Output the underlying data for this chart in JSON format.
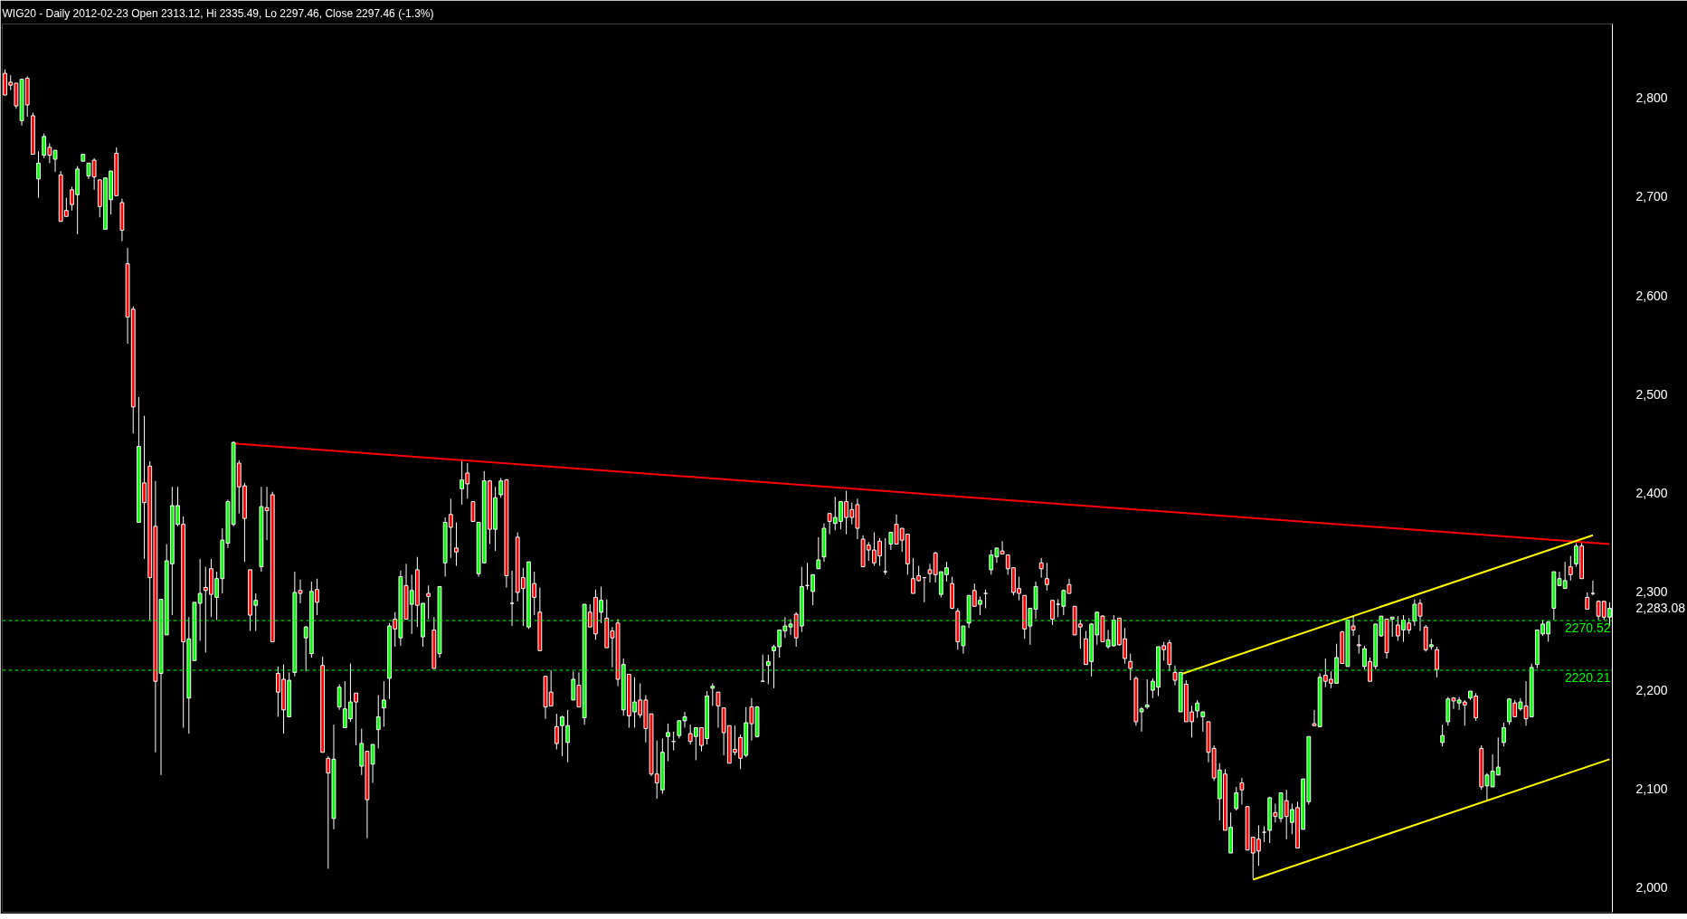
{
  "chart_data": {
    "type": "candlestick",
    "title": "WIG20 - Daily 2012-02-23 Open 2313.12, Hi 2335.49, Lo 2297.46, Close 2297.46 (-1.3%)",
    "categories": [
      null,
      null,
      null,
      null,
      null,
      null,
      null,
      null,
      null,
      null,
      null,
      null,
      null,
      null,
      null,
      null,
      null,
      null,
      null,
      null,
      null,
      null,
      null,
      null,
      null,
      null,
      null,
      null,
      null,
      null,
      null,
      null,
      null,
      null,
      null,
      null,
      null,
      null,
      null,
      null,
      null,
      null,
      null,
      null,
      null,
      null,
      null,
      null,
      null,
      null,
      null,
      null,
      null,
      null,
      null,
      null,
      null,
      null,
      null,
      null,
      null,
      null,
      null,
      null,
      null,
      null,
      null,
      null,
      null,
      null,
      null,
      null,
      null,
      null,
      null,
      null,
      null,
      null,
      null,
      null,
      null,
      null,
      null,
      null,
      null,
      null,
      null,
      null,
      null,
      null,
      null,
      null,
      null,
      null,
      null,
      null,
      null,
      null,
      null,
      null,
      null,
      null,
      null,
      null,
      null,
      null,
      null,
      null,
      null,
      null,
      null,
      null,
      null,
      null,
      null,
      null,
      null,
      null,
      null,
      null,
      null,
      null,
      null,
      null,
      null,
      null,
      null,
      null,
      null,
      null,
      null,
      null,
      null,
      null,
      null,
      null,
      null,
      null,
      null,
      null,
      null,
      null,
      null,
      null,
      null,
      null,
      null,
      null,
      null,
      null,
      null,
      null,
      null,
      null,
      null,
      null,
      null,
      null,
      null,
      null,
      null,
      null,
      null,
      null,
      null,
      null,
      null,
      null,
      null,
      null,
      null,
      null,
      null,
      null,
      null,
      null,
      null,
      null,
      null,
      null,
      null,
      null,
      null,
      null,
      null,
      null,
      null,
      null,
      null,
      null,
      null,
      null,
      null,
      null,
      null,
      null,
      null,
      null,
      null,
      null,
      null,
      null,
      null,
      null,
      null,
      null,
      null,
      null,
      null,
      null,
      null,
      null,
      null,
      null,
      null,
      null,
      null,
      null,
      null,
      null,
      null,
      null,
      null,
      null,
      null,
      null,
      null,
      null,
      null,
      null,
      null,
      null,
      null,
      null,
      null,
      null,
      null,
      null,
      null,
      null,
      null,
      null,
      null,
      null,
      null,
      null,
      null,
      null,
      null,
      null,
      null,
      null,
      null,
      null,
      null,
      null,
      null,
      null,
      null,
      null,
      null,
      null,
      null,
      null,
      null,
      null,
      null,
      null,
      null,
      null,
      null,
      null,
      null,
      null,
      null,
      null,
      null,
      null,
      null,
      null,
      null,
      null,
      null,
      null,
      null,
      null,
      null,
      null,
      null
    ],
    "ohlc": [
      [
        2825,
        2829,
        2803,
        2803
      ],
      [
        2816,
        2823,
        2808,
        2813
      ],
      [
        2815,
        2815,
        2789,
        2792
      ],
      [
        2777,
        2819,
        2772,
        2819
      ],
      [
        2820,
        2822,
        2781,
        2793
      ],
      [
        2782,
        2785,
        2743,
        2743
      ],
      [
        2718,
        2746,
        2699,
        2734
      ],
      [
        2742,
        2764,
        2739,
        2761
      ],
      [
        2750,
        2754,
        2734,
        2742
      ],
      [
        2738,
        2747,
        2725,
        2747
      ],
      [
        2722,
        2726,
        2675,
        2675
      ],
      [
        2686,
        2699,
        2680,
        2680
      ],
      [
        2707,
        2710,
        2686,
        2692
      ],
      [
        2702,
        2731,
        2662,
        2728
      ],
      [
        2736,
        2743,
        2736,
        2743
      ],
      [
        2721,
        2734,
        2718,
        2734
      ],
      [
        2737,
        2739,
        2707,
        2720
      ],
      [
        2717,
        2717,
        2679,
        2690
      ],
      [
        2667,
        2719,
        2667,
        2719
      ],
      [
        2697,
        2726,
        2682,
        2726
      ],
      [
        2744,
        2750,
        2701,
        2701
      ],
      [
        2694,
        2698,
        2655,
        2666
      ],
      [
        2632,
        2648,
        2551,
        2578
      ],
      [
        2586,
        2589,
        2460,
        2487
      ],
      [
        2370,
        2497,
        2370,
        2447
      ],
      [
        2410,
        2478,
        2333,
        2390
      ],
      [
        2427,
        2432,
        2271,
        2314
      ],
      [
        2366,
        2412,
        2137,
        2209
      ],
      [
        2217,
        2292,
        2114,
        2292
      ],
      [
        2256,
        2348,
        2256,
        2331
      ],
      [
        2328,
        2406,
        2276,
        2387
      ],
      [
        2368,
        2406,
        2366,
        2387
      ],
      [
        2368,
        2376,
        2162,
        2249
      ],
      [
        2192,
        2274,
        2156,
        2252
      ],
      [
        2230,
        2289,
        2230,
        2289
      ],
      [
        2288,
        2333,
        2250,
        2298
      ],
      [
        2304,
        2325,
        2238,
        2301
      ],
      [
        2323,
        2333,
        2274,
        2297
      ],
      [
        2294,
        2320,
        2271,
        2313
      ],
      [
        2313,
        2364,
        2298,
        2352
      ],
      [
        2349,
        2393,
        2344,
        2391
      ],
      [
        2368,
        2452,
        2366,
        2451
      ],
      [
        2430,
        2433,
        2379,
        2406
      ],
      [
        2407,
        2410,
        2330,
        2374
      ],
      [
        2322,
        2322,
        2260,
        2276
      ],
      [
        2286,
        2298,
        2260,
        2291
      ],
      [
        2325,
        2406,
        2320,
        2386
      ],
      [
        2385,
        2406,
        2352,
        2382
      ],
      [
        2398,
        2401,
        2249,
        2249
      ],
      [
        2217,
        2224,
        2173,
        2198
      ],
      [
        2211,
        2226,
        2156,
        2180
      ],
      [
        2173,
        2218,
        2173,
        2210
      ],
      [
        2218,
        2320,
        2214,
        2299
      ],
      [
        2301,
        2312,
        2288,
        2298
      ],
      [
        2253,
        2265,
        2219,
        2264
      ],
      [
        2237,
        2310,
        2233,
        2300
      ],
      [
        2302,
        2313,
        2276,
        2289
      ],
      [
        2225,
        2234,
        2137,
        2137
      ],
      [
        2131,
        2133,
        2019,
        2116
      ],
      [
        2070,
        2165,
        2059,
        2130
      ],
      [
        2183,
        2206,
        2180,
        2203
      ],
      [
        2162,
        2209,
        2162,
        2181
      ],
      [
        2171,
        2227,
        2168,
        2188
      ],
      [
        2197,
        2197,
        2144,
        2188
      ],
      [
        2123,
        2161,
        2114,
        2146
      ],
      [
        2138,
        2138,
        2050,
        2089
      ],
      [
        2125,
        2145,
        2106,
        2145
      ],
      [
        2160,
        2195,
        2141,
        2173
      ],
      [
        2182,
        2209,
        2163,
        2190
      ],
      [
        2212,
        2268,
        2191,
        2265
      ],
      [
        2272,
        2279,
        2244,
        2262
      ],
      [
        2253,
        2321,
        2245,
        2315
      ],
      [
        2306,
        2328,
        2272,
        2272
      ],
      [
        2287,
        2317,
        2257,
        2301
      ],
      [
        2322,
        2335,
        2264,
        2286
      ],
      [
        2254,
        2288,
        2244,
        2288
      ],
      [
        2298,
        2306,
        2272,
        2295
      ],
      [
        2261,
        2274,
        2222,
        2222
      ],
      [
        2237,
        2305,
        2233,
        2305
      ],
      [
        2329,
        2375,
        2315,
        2370
      ],
      [
        2378,
        2394,
        2334,
        2365
      ],
      [
        2344,
        2370,
        2326,
        2340
      ],
      [
        2404,
        2432,
        2388,
        2413
      ],
      [
        2420,
        2430,
        2394,
        2409
      ],
      [
        2391,
        2391,
        2371,
        2371
      ],
      [
        2318,
        2370,
        2315,
        2370
      ],
      [
        2329,
        2422,
        2329,
        2412
      ],
      [
        2412,
        2413,
        2348,
        2363
      ],
      [
        2363,
        2406,
        2341,
        2395
      ],
      [
        2398,
        2415,
        2395,
        2412
      ],
      [
        2413,
        2414,
        2304,
        2316
      ],
      [
        2288,
        2321,
        2265,
        2288
      ],
      [
        2355,
        2360,
        2290,
        2299
      ],
      [
        2314,
        2324,
        2265,
        2303
      ],
      [
        2264,
        2330,
        2262,
        2330
      ],
      [
        2308,
        2320,
        2276,
        2294
      ],
      [
        2279,
        2304,
        2240,
        2240
      ],
      [
        2214,
        2214,
        2171,
        2183
      ],
      [
        2198,
        2220,
        2184,
        2184
      ],
      [
        2163,
        2176,
        2140,
        2146
      ],
      [
        2164,
        2174,
        2133,
        2173
      ],
      [
        2147,
        2180,
        2127,
        2164
      ],
      [
        2190,
        2219,
        2190,
        2211
      ],
      [
        2205,
        2218,
        2183,
        2183
      ],
      [
        2172,
        2287,
        2165,
        2287
      ],
      [
        2279,
        2287,
        2264,
        2264
      ],
      [
        2294,
        2302,
        2251,
        2257
      ],
      [
        2279,
        2305,
        2268,
        2291
      ],
      [
        2273,
        2292,
        2243,
        2243
      ],
      [
        2260,
        2264,
        2223,
        2253
      ],
      [
        2268,
        2272,
        2204,
        2211
      ],
      [
        2180,
        2232,
        2174,
        2226
      ],
      [
        2216,
        2216,
        2162,
        2174
      ],
      [
        2178,
        2213,
        2162,
        2188
      ],
      [
        2190,
        2207,
        2172,
        2175
      ],
      [
        2190,
        2195,
        2147,
        2161
      ],
      [
        2176,
        2176,
        2113,
        2115
      ],
      [
        2115,
        2149,
        2090,
        2106
      ],
      [
        2099,
        2151,
        2095,
        2137
      ],
      [
        2153,
        2166,
        2128,
        2157
      ],
      [
        2148,
        2158,
        2139,
        2148
      ],
      [
        2154,
        2169,
        2151,
        2169
      ],
      [
        2169,
        2178,
        2162,
        2173
      ],
      [
        2156,
        2165,
        2145,
        2148
      ],
      [
        2153,
        2162,
        2129,
        2162
      ],
      [
        2162,
        2162,
        2138,
        2144
      ],
      [
        2151,
        2199,
        2145,
        2194
      ],
      [
        2202,
        2207,
        2184,
        2204
      ],
      [
        2198,
        2198,
        2162,
        2184
      ],
      [
        2182,
        2182,
        2134,
        2157
      ],
      [
        2164,
        2164,
        2126,
        2126
      ],
      [
        2140,
        2164,
        2134,
        2137
      ],
      [
        2152,
        2155,
        2120,
        2131
      ],
      [
        2134,
        2183,
        2132,
        2167
      ],
      [
        2183,
        2192,
        2149,
        2166
      ],
      [
        2153,
        2184,
        2152,
        2183
      ],
      [
        2209,
        2236,
        2209,
        2209
      ],
      [
        2225,
        2236,
        2206,
        2229
      ],
      [
        2240,
        2246,
        2202,
        2244
      ],
      [
        2244,
        2261,
        2233,
        2261
      ],
      [
        2260,
        2274,
        2253,
        2265
      ],
      [
        2264,
        2272,
        2256,
        2267
      ],
      [
        2277,
        2279,
        2244,
        2253
      ],
      [
        2265,
        2325,
        2259,
        2305
      ],
      [
        2306,
        2329,
        2302,
        2306
      ],
      [
        2300,
        2317,
        2286,
        2317
      ],
      [
        2323,
        2355,
        2323,
        2332
      ],
      [
        2335,
        2369,
        2330,
        2364
      ],
      [
        2379,
        2379,
        2358,
        2371
      ],
      [
        2369,
        2396,
        2362,
        2375
      ],
      [
        2371,
        2391,
        2363,
        2391
      ],
      [
        2391,
        2402,
        2358,
        2375
      ],
      [
        2383,
        2390,
        2368,
        2375
      ],
      [
        2388,
        2394,
        2353,
        2364
      ],
      [
        2353,
        2357,
        2325,
        2325
      ],
      [
        2347,
        2350,
        2331,
        2342
      ],
      [
        2342,
        2360,
        2326,
        2329
      ],
      [
        2351,
        2354,
        2326,
        2336
      ],
      [
        2320,
        2354,
        2317,
        2320
      ],
      [
        2348,
        2360,
        2342,
        2360
      ],
      [
        2368,
        2378,
        2348,
        2348
      ],
      [
        2364,
        2364,
        2340,
        2352
      ],
      [
        2358,
        2358,
        2317,
        2328
      ],
      [
        2313,
        2334,
        2298,
        2298
      ],
      [
        2316,
        2326,
        2310,
        2311
      ],
      [
        2314,
        2314,
        2289,
        2314
      ],
      [
        2322,
        2328,
        2309,
        2318
      ],
      [
        2339,
        2340,
        2309,
        2317
      ],
      [
        2297,
        2320,
        2294,
        2320
      ],
      [
        2317,
        2330,
        2310,
        2324
      ],
      [
        2308,
        2315,
        2282,
        2283
      ],
      [
        2280,
        2283,
        2241,
        2249
      ],
      [
        2245,
        2265,
        2237,
        2265
      ],
      [
        2268,
        2296,
        2263,
        2296
      ],
      [
        2301,
        2308,
        2285,
        2285
      ],
      [
        2287,
        2295,
        2276,
        2291
      ],
      [
        2298,
        2302,
        2283,
        2298
      ],
      [
        2322,
        2342,
        2317,
        2337
      ],
      [
        2335,
        2344,
        2329,
        2344
      ],
      [
        2341,
        2351,
        2338,
        2338
      ],
      [
        2337,
        2337,
        2317,
        2323
      ],
      [
        2324,
        2324,
        2296,
        2299
      ],
      [
        2303,
        2315,
        2291,
        2298
      ],
      [
        2296,
        2296,
        2252,
        2262
      ],
      [
        2265,
        2283,
        2246,
        2283
      ],
      [
        2282,
        2310,
        2272,
        2305
      ],
      [
        2329,
        2334,
        2314,
        2323
      ],
      [
        2313,
        2329,
        2301,
        2307
      ],
      [
        2291,
        2291,
        2266,
        2272
      ],
      [
        2287,
        2292,
        2274,
        2287
      ],
      [
        2285,
        2302,
        2276,
        2301
      ],
      [
        2307,
        2313,
        2298,
        2298
      ],
      [
        2285,
        2285,
        2256,
        2256
      ],
      [
        2267,
        2271,
        2242,
        2264
      ],
      [
        2252,
        2260,
        2226,
        2226
      ],
      [
        2229,
        2268,
        2214,
        2267
      ],
      [
        2256,
        2279,
        2246,
        2279
      ],
      [
        2275,
        2276,
        2249,
        2249
      ],
      [
        2244,
        2261,
        2242,
        2251
      ],
      [
        2245,
        2276,
        2244,
        2271
      ],
      [
        2273,
        2273,
        2245,
        2246
      ],
      [
        2252,
        2263,
        2227,
        2232
      ],
      [
        2229,
        2237,
        2210,
        2222
      ],
      [
        2212,
        2214,
        2164,
        2168
      ],
      [
        2178,
        2183,
        2158,
        2181
      ],
      [
        2183,
        2211,
        2181,
        2185
      ],
      [
        2200,
        2212,
        2192,
        2209
      ],
      [
        2203,
        2244,
        2194,
        2244
      ],
      [
        2245,
        2249,
        2230,
        2241
      ],
      [
        2248,
        2251,
        2219,
        2226
      ],
      [
        2218,
        2225,
        2205,
        2210
      ],
      [
        2178,
        2218,
        2178,
        2218
      ],
      [
        2206,
        2210,
        2168,
        2168
      ],
      [
        2178,
        2184,
        2152,
        2168
      ],
      [
        2179,
        2190,
        2172,
        2187
      ],
      [
        2173,
        2178,
        2158,
        2178
      ],
      [
        2168,
        2168,
        2127,
        2137
      ],
      [
        2141,
        2144,
        2108,
        2111
      ],
      [
        2090,
        2126,
        2068,
        2119
      ],
      [
        2115,
        2120,
        2058,
        2058
      ],
      [
        2035,
        2076,
        2035,
        2061
      ],
      [
        2080,
        2102,
        2078,
        2096
      ],
      [
        2106,
        2111,
        2084,
        2099
      ],
      [
        2082,
        2082,
        2038,
        2038
      ],
      [
        2051,
        2051,
        2009,
        2035
      ],
      [
        2049,
        2063,
        2022,
        2037
      ],
      [
        2056,
        2062,
        2046,
        2056
      ],
      [
        2058,
        2092,
        2045,
        2091
      ],
      [
        2076,
        2085,
        2066,
        2072
      ],
      [
        2070,
        2096,
        2066,
        2096
      ],
      [
        2088,
        2099,
        2049,
        2072
      ],
      [
        2066,
        2085,
        2054,
        2079
      ],
      [
        2081,
        2087,
        2040,
        2040
      ],
      [
        2059,
        2110,
        2059,
        2110
      ],
      [
        2087,
        2153,
        2084,
        2153
      ],
      [
        2166,
        2180,
        2164,
        2164
      ],
      [
        2163,
        2217,
        2163,
        2213
      ],
      [
        2215,
        2232,
        2203,
        2209
      ],
      [
        2211,
        2219,
        2202,
        2207
      ],
      [
        2207,
        2247,
        2207,
        2233
      ],
      [
        2259,
        2260,
        2227,
        2227
      ],
      [
        2224,
        2271,
        2224,
        2271
      ],
      [
        2265,
        2275,
        2255,
        2261
      ],
      [
        2246,
        2256,
        2237,
        2245
      ],
      [
        2224,
        2245,
        2221,
        2242
      ],
      [
        2229,
        2233,
        2209,
        2209
      ],
      [
        2224,
        2267,
        2221,
        2267
      ],
      [
        2255,
        2275,
        2254,
        2275
      ],
      [
        2272,
        2272,
        2232,
        2238
      ],
      [
        2272,
        2274,
        2254,
        2274
      ],
      [
        2266,
        2275,
        2250,
        2255
      ],
      [
        2261,
        2276,
        2249,
        2271
      ],
      [
        2268,
        2273,
        2257,
        2261
      ],
      [
        2270,
        2292,
        2265,
        2287
      ],
      [
        2288,
        2292,
        2260,
        2275
      ],
      [
        2264,
        2266,
        2239,
        2241
      ],
      [
        2244,
        2252,
        2241,
        2246
      ],
      [
        2241,
        2244,
        2213,
        2221
      ],
      [
        2147,
        2165,
        2143,
        2154
      ],
      [
        2168,
        2193,
        2164,
        2191
      ],
      [
        2192,
        2193,
        2181,
        2189
      ],
      [
        2187,
        2193,
        2180,
        2190
      ],
      [
        2188,
        2190,
        2164,
        2185
      ],
      [
        2192,
        2199,
        2190,
        2199
      ],
      [
        2194,
        2197,
        2169,
        2172
      ],
      [
        2141,
        2144,
        2099,
        2102
      ],
      [
        2103,
        2116,
        2089,
        2114
      ],
      [
        2102,
        2135,
        2102,
        2118
      ],
      [
        2114,
        2152,
        2114,
        2122
      ],
      [
        2147,
        2167,
        2143,
        2162
      ],
      [
        2168,
        2192,
        2165,
        2191
      ],
      [
        2187,
        2190,
        2173,
        2173
      ],
      [
        2181,
        2192,
        2179,
        2188
      ],
      [
        2184,
        2209,
        2164,
        2171
      ],
      [
        2173,
        2227,
        2173,
        2223
      ],
      [
        2226,
        2261,
        2222,
        2261
      ],
      [
        2257,
        2271,
        2255,
        2267
      ],
      [
        2257,
        2269,
        2249,
        2269
      ],
      [
        2283,
        2320,
        2271,
        2320
      ],
      [
        2306,
        2320,
        2306,
        2313
      ],
      [
        2303,
        2330,
        2303,
        2311
      ],
      [
        2325,
        2336,
        2311,
        2317
      ],
      [
        2328,
        2349,
        2325,
        2346
      ],
      [
        2346,
        2349,
        2313,
        2313
      ],
      [
        2294,
        2299,
        2282,
        2282
      ],
      [
        2298,
        2311,
        2296,
        2298
      ],
      [
        2290,
        2291,
        2271,
        2275
      ],
      [
        2290,
        2290,
        2271,
        2274
      ],
      [
        2274,
        2289,
        2265,
        2283
      ]
    ],
    "series": [
      {
        "type": "line",
        "color": "#ff0000",
        "values": [
          null,
          null,
          null,
          null,
          null,
          null,
          null,
          null,
          null,
          null,
          null,
          null,
          null,
          null,
          null,
          null,
          null,
          null,
          null,
          null,
          null,
          null,
          null,
          null,
          null,
          null,
          null,
          null,
          null,
          null,
          null,
          null,
          null,
          null,
          null,
          null,
          null,
          null,
          null,
          null,
          null,
          2450,
          null,
          null,
          null,
          null,
          null,
          null,
          null,
          null,
          null,
          null,
          null,
          null,
          null,
          null,
          null,
          null,
          null,
          null,
          null,
          null,
          null,
          null,
          null,
          null,
          null,
          null,
          null,
          null,
          null,
          null,
          null,
          null,
          null,
          null,
          null,
          null,
          null,
          null,
          null,
          null,
          null,
          null,
          null,
          null,
          null,
          null,
          null,
          null,
          null,
          null,
          null,
          null,
          null,
          null,
          null,
          null,
          null,
          null,
          null,
          null,
          null,
          null,
          null,
          null,
          null,
          null,
          null,
          null,
          null,
          null,
          null,
          null,
          null,
          null,
          null,
          null,
          null,
          null,
          null,
          null,
          null,
          null,
          null,
          null,
          null,
          null,
          null,
          null,
          null,
          null,
          null,
          null,
          null,
          null,
          null,
          null,
          null,
          null,
          null,
          null,
          null,
          null,
          null,
          null,
          null,
          null,
          null,
          null,
          null,
          null,
          null,
          null,
          null,
          null,
          null,
          null,
          null,
          null,
          null,
          null,
          null,
          null,
          null,
          null,
          null,
          null,
          null,
          null,
          null,
          null,
          null,
          null,
          null,
          null,
          null,
          null,
          null,
          null,
          null,
          null,
          null,
          null,
          null,
          null,
          null,
          null,
          null,
          null,
          null,
          null,
          null,
          null,
          null,
          null,
          null,
          null,
          null,
          null,
          null,
          null,
          null,
          null,
          null,
          null,
          null,
          null,
          null,
          null,
          null,
          null,
          null,
          null,
          null,
          null,
          null,
          null,
          null,
          null,
          null,
          null,
          null,
          null,
          null,
          null,
          null,
          null,
          null,
          null,
          null,
          null,
          null,
          null,
          null,
          null,
          null,
          null,
          null,
          null,
          null,
          null,
          null,
          null,
          null,
          null,
          null,
          null,
          null,
          null,
          null,
          null,
          null,
          null,
          null,
          null,
          null,
          null,
          null,
          null,
          null,
          null,
          null,
          null,
          null,
          null,
          null,
          null,
          null,
          null,
          null,
          null,
          null,
          null,
          null,
          null,
          null,
          null,
          null,
          null,
          null,
          null,
          null,
          null,
          null,
          null,
          null,
          null,
          2348
        ]
      },
      {
        "type": "line",
        "color": "#ffff00",
        "values": [
          null,
          null,
          null,
          null,
          null,
          null,
          null,
          null,
          null,
          null,
          null,
          null,
          null,
          null,
          null,
          null,
          null,
          null,
          null,
          null,
          null,
          null,
          null,
          null,
          null,
          null,
          null,
          null,
          null,
          null,
          null,
          null,
          null,
          null,
          null,
          null,
          null,
          null,
          null,
          null,
          null,
          null,
          null,
          null,
          null,
          null,
          null,
          null,
          null,
          null,
          null,
          null,
          null,
          null,
          null,
          null,
          null,
          null,
          null,
          null,
          null,
          null,
          null,
          null,
          null,
          null,
          null,
          null,
          null,
          null,
          null,
          null,
          null,
          null,
          null,
          null,
          null,
          null,
          null,
          null,
          null,
          null,
          null,
          null,
          null,
          null,
          null,
          null,
          null,
          null,
          null,
          null,
          null,
          null,
          null,
          null,
          null,
          null,
          null,
          null,
          null,
          null,
          null,
          null,
          null,
          null,
          null,
          null,
          null,
          null,
          null,
          null,
          null,
          null,
          null,
          null,
          null,
          null,
          null,
          null,
          null,
          null,
          null,
          null,
          null,
          null,
          null,
          null,
          null,
          null,
          null,
          null,
          null,
          null,
          null,
          null,
          null,
          null,
          null,
          null,
          null,
          null,
          null,
          null,
          null,
          null,
          null,
          null,
          null,
          null,
          null,
          null,
          null,
          null,
          null,
          null,
          null,
          null,
          null,
          null,
          null,
          null,
          null,
          null,
          null,
          null,
          null,
          null,
          null,
          null,
          null,
          null,
          null,
          null,
          null,
          null,
          null,
          null,
          null,
          null,
          null,
          null,
          null,
          null,
          null,
          null,
          null,
          null,
          null,
          null,
          null,
          null,
          null,
          null,
          null,
          null,
          null,
          null,
          null,
          null,
          null,
          null,
          null,
          null,
          null,
          null,
          null,
          null,
          null,
          null,
          null,
          2216,
          null,
          null,
          null,
          null,
          null,
          null,
          null,
          null,
          null,
          null,
          null,
          null,
          null,
          null,
          null,
          null,
          null,
          null,
          null,
          null,
          null,
          null,
          null,
          null,
          null,
          null,
          null,
          null,
          null,
          null,
          null,
          null,
          null,
          null,
          null,
          null,
          null,
          null,
          null,
          null,
          null,
          null,
          null,
          null,
          null,
          null,
          null,
          null,
          null,
          null,
          null,
          null,
          null,
          null,
          null,
          null,
          null,
          null,
          null,
          null,
          null,
          null,
          null,
          null,
          null,
          null,
          null,
          null,
          null,
          null,
          null,
          null,
          null,
          2357,
          null,
          null,
          null
        ]
      },
      {
        "type": "line",
        "color": "#ffff00",
        "values": [
          null,
          null,
          null,
          null,
          null,
          null,
          null,
          null,
          null,
          null,
          null,
          null,
          null,
          null,
          null,
          null,
          null,
          null,
          null,
          null,
          null,
          null,
          null,
          null,
          null,
          null,
          null,
          null,
          null,
          null,
          null,
          null,
          null,
          null,
          null,
          null,
          null,
          null,
          null,
          null,
          null,
          null,
          null,
          null,
          null,
          null,
          null,
          null,
          null,
          null,
          null,
          null,
          null,
          null,
          null,
          null,
          null,
          null,
          null,
          null,
          null,
          null,
          null,
          null,
          null,
          null,
          null,
          null,
          null,
          null,
          null,
          null,
          null,
          null,
          null,
          null,
          null,
          null,
          null,
          null,
          null,
          null,
          null,
          null,
          null,
          null,
          null,
          null,
          null,
          null,
          null,
          null,
          null,
          null,
          null,
          null,
          null,
          null,
          null,
          null,
          null,
          null,
          null,
          null,
          null,
          null,
          null,
          null,
          null,
          null,
          null,
          null,
          null,
          null,
          null,
          null,
          null,
          null,
          null,
          null,
          null,
          null,
          null,
          null,
          null,
          null,
          null,
          null,
          null,
          null,
          null,
          null,
          null,
          null,
          null,
          null,
          null,
          null,
          null,
          null,
          null,
          null,
          null,
          null,
          null,
          null,
          null,
          null,
          null,
          null,
          null,
          null,
          null,
          null,
          null,
          null,
          null,
          null,
          null,
          null,
          null,
          null,
          null,
          null,
          null,
          null,
          null,
          null,
          null,
          null,
          null,
          null,
          null,
          null,
          null,
          null,
          null,
          null,
          null,
          null,
          null,
          null,
          null,
          null,
          null,
          null,
          null,
          null,
          null,
          null,
          null,
          null,
          null,
          null,
          null,
          null,
          null,
          null,
          null,
          null,
          null,
          null,
          null,
          null,
          null,
          null,
          null,
          null,
          null,
          null,
          null,
          null,
          null,
          null,
          null,
          null,
          null,
          null,
          null,
          null,
          null,
          null,
          null,
          null,
          2008,
          null,
          null,
          null,
          null,
          null,
          null,
          null,
          null,
          null,
          null,
          null,
          null,
          null,
          null,
          null,
          null,
          null,
          null,
          null,
          null,
          null,
          null,
          null,
          null,
          null,
          null,
          null,
          null,
          null,
          null,
          null,
          null,
          null,
          null,
          null,
          null,
          null,
          null,
          null,
          null,
          null,
          null,
          null,
          null,
          null,
          null,
          null,
          null,
          null,
          null,
          null,
          null,
          null,
          null,
          null,
          null,
          null,
          null,
          null,
          null,
          null,
          null,
          null,
          2130
        ]
      }
    ],
    "ref_lines": [
      {
        "axis": "y",
        "value": 2270.52,
        "label": "2270.52",
        "color": "#00ff00",
        "line_style": "dashed"
      },
      {
        "axis": "y",
        "value": 2220.21,
        "label": "2220.21",
        "color": "#00ff00",
        "line_style": "dashed"
      }
    ],
    "ylim": [
      1975,
      2875
    ],
    "yticks": [
      {
        "value": 2000,
        "label": "2,000"
      },
      {
        "value": 2100,
        "label": "2,100"
      },
      {
        "value": 2200,
        "label": "2,200"
      },
      {
        "value": 2283.08,
        "label": "2,283.08"
      },
      {
        "value": 2300,
        "label": "2,300"
      },
      {
        "value": 2400,
        "label": "2,400"
      },
      {
        "value": 2500,
        "label": "2,500"
      },
      {
        "value": 2600,
        "label": "2,600"
      },
      {
        "value": 2700,
        "label": "2,700"
      },
      {
        "value": 2800,
        "label": "2,800"
      }
    ],
    "tick_labels": "y",
    "grid": false
  }
}
